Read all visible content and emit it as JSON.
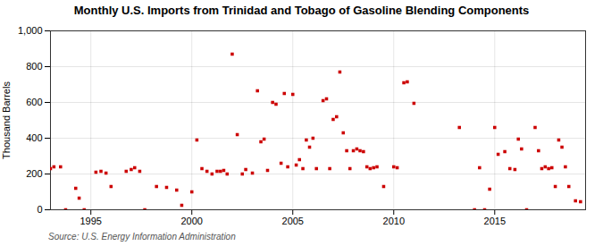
{
  "chart_data": {
    "type": "scatter",
    "title": "Monthly U.S. Imports from Trinidad and Tobago of Gasoline Blending Components",
    "ylabel": "Thousand Barrels",
    "source": "Source: U.S. Energy Information Administration",
    "color": "#cc0000",
    "marker": "square",
    "grid": true,
    "xlim": [
      1993.0,
      2019.5
    ],
    "ylim": [
      0,
      1000
    ],
    "xticks": [
      1995,
      2000,
      2005,
      2010,
      2015
    ],
    "yticks": [
      0,
      200,
      400,
      600,
      800,
      {
        "value": 1000,
        "label": "1,000"
      }
    ],
    "x": [
      1993.0,
      1993.17,
      1993.5,
      1993.75,
      1994.25,
      1994.42,
      1994.67,
      1995.25,
      1995.5,
      1995.75,
      1996.0,
      1996.75,
      1997.0,
      1997.17,
      1997.42,
      1997.67,
      1998.25,
      1998.75,
      1999.25,
      1999.5,
      2000.0,
      2000.25,
      2000.5,
      2000.75,
      2001.0,
      2001.25,
      2001.42,
      2001.58,
      2001.75,
      2002.0,
      2002.25,
      2002.5,
      2002.67,
      2003.0,
      2003.25,
      2003.42,
      2003.58,
      2003.75,
      2004.0,
      2004.17,
      2004.42,
      2004.58,
      2004.75,
      2005.0,
      2005.17,
      2005.33,
      2005.5,
      2005.67,
      2005.83,
      2006.0,
      2006.17,
      2006.5,
      2006.67,
      2006.83,
      2007.0,
      2007.17,
      2007.33,
      2007.5,
      2007.67,
      2007.83,
      2008.0,
      2008.17,
      2008.33,
      2008.5,
      2008.67,
      2008.83,
      2009.0,
      2009.17,
      2009.5,
      2010.0,
      2010.17,
      2010.5,
      2010.67,
      2011.0,
      2013.25,
      2014.0,
      2014.25,
      2014.5,
      2014.75,
      2015.0,
      2015.17,
      2015.5,
      2015.75,
      2016.0,
      2016.17,
      2016.33,
      2016.58,
      2017.0,
      2017.17,
      2017.33,
      2017.5,
      2017.67,
      2017.83,
      2018.0,
      2018.17,
      2018.33,
      2018.5,
      2018.67,
      2019.0,
      2019.25
    ],
    "values": [
      230,
      240,
      240,
      0,
      120,
      65,
      0,
      210,
      215,
      205,
      130,
      215,
      225,
      235,
      215,
      0,
      130,
      125,
      110,
      25,
      100,
      390,
      230,
      215,
      200,
      215,
      215,
      220,
      200,
      870,
      420,
      200,
      225,
      205,
      665,
      380,
      395,
      220,
      600,
      590,
      260,
      650,
      240,
      645,
      250,
      280,
      230,
      390,
      350,
      400,
      230,
      610,
      620,
      230,
      505,
      520,
      770,
      430,
      330,
      230,
      330,
      340,
      330,
      325,
      240,
      230,
      235,
      240,
      130,
      240,
      235,
      710,
      715,
      595,
      460,
      0,
      235,
      0,
      115,
      460,
      310,
      325,
      230,
      225,
      395,
      340,
      0,
      460,
      330,
      230,
      240,
      230,
      235,
      130,
      390,
      350,
      240,
      130,
      50,
      45
    ]
  }
}
